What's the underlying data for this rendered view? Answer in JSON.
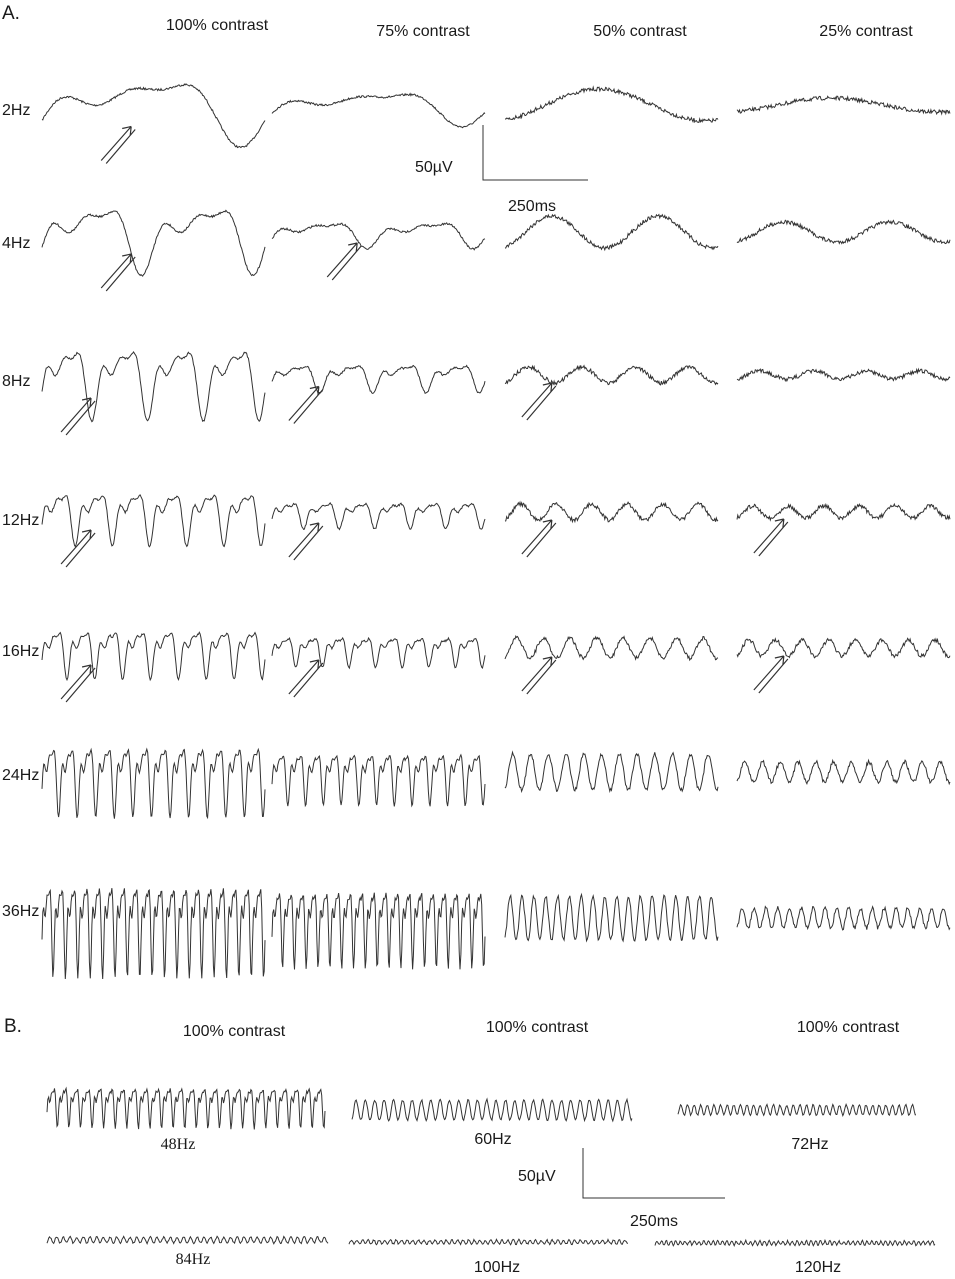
{
  "panel_a": {
    "label": "A.",
    "columns": [
      "100% contrast",
      "75% contrast",
      "50% contrast",
      "25% contrast"
    ],
    "rows": [
      "2Hz",
      "4Hz",
      "8Hz",
      "12Hz",
      "16Hz",
      "24Hz",
      "36Hz"
    ],
    "scale_bar": {
      "voltage": "50µV",
      "time": "250ms"
    }
  },
  "panel_b": {
    "label": "B.",
    "columns": [
      "100% contrast",
      "100% contrast",
      "100% contrast"
    ],
    "traces": [
      "48Hz",
      "60Hz",
      "72Hz",
      "84Hz",
      "100Hz",
      "120Hz"
    ],
    "scale_bar": {
      "voltage": "50µV",
      "time": "250ms"
    }
  },
  "colors": {
    "trace": "#333333",
    "background": "#ffffff"
  }
}
